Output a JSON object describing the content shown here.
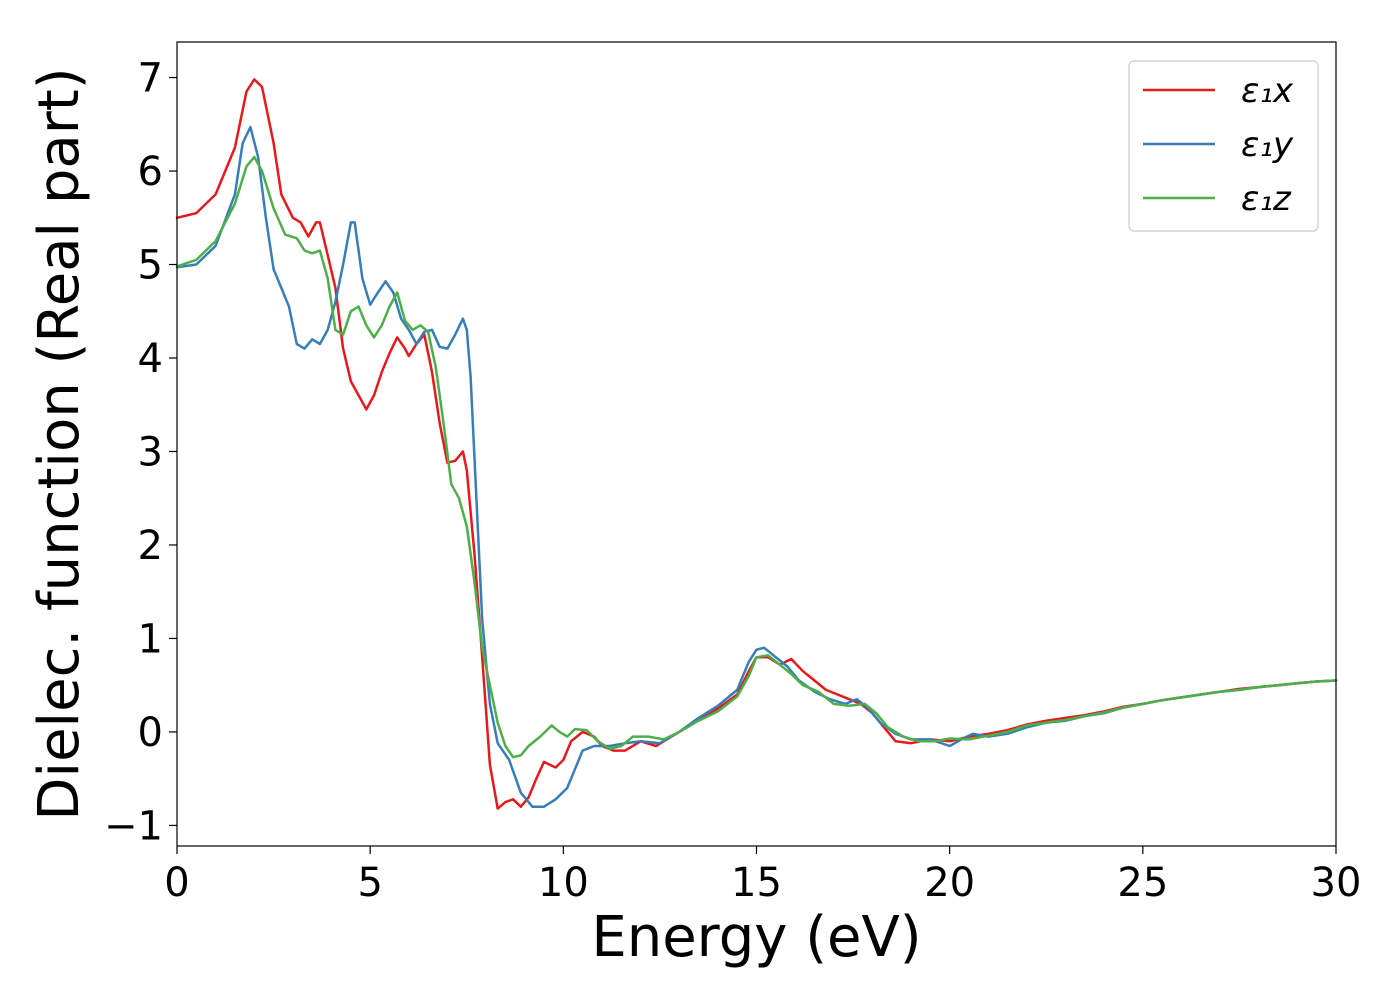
{
  "chart_data": {
    "type": "line",
    "xlabel": "Energy (eV)",
    "ylabel": "Dielec. function (Real part)",
    "xlim": [
      0,
      30
    ],
    "ylim": [
      -1.22,
      7.38
    ],
    "xticks": [
      0,
      5,
      10,
      15,
      20,
      25,
      30
    ],
    "xtick_labels": [
      "0",
      "5",
      "10",
      "15",
      "20",
      "25",
      "30"
    ],
    "yticks": [
      -1,
      0,
      1,
      2,
      3,
      4,
      5,
      6,
      7
    ],
    "ytick_labels": [
      "−1",
      "0",
      "1",
      "2",
      "3",
      "4",
      "5",
      "6",
      "7"
    ],
    "grid": false,
    "legend_position": "top-right",
    "series": [
      {
        "name": "ε₁x",
        "color": "#e41a1c",
        "points": [
          [
            0,
            5.5
          ],
          [
            0.5,
            5.55
          ],
          [
            1.0,
            5.75
          ],
          [
            1.5,
            6.25
          ],
          [
            1.8,
            6.85
          ],
          [
            2.0,
            6.98
          ],
          [
            2.2,
            6.9
          ],
          [
            2.5,
            6.3
          ],
          [
            2.7,
            5.75
          ],
          [
            3.0,
            5.5
          ],
          [
            3.2,
            5.45
          ],
          [
            3.4,
            5.3
          ],
          [
            3.6,
            5.45
          ],
          [
            3.7,
            5.45
          ],
          [
            3.9,
            5.1
          ],
          [
            4.1,
            4.75
          ],
          [
            4.3,
            4.1
          ],
          [
            4.5,
            3.75
          ],
          [
            4.7,
            3.6
          ],
          [
            4.9,
            3.45
          ],
          [
            5.1,
            3.6
          ],
          [
            5.3,
            3.85
          ],
          [
            5.5,
            4.05
          ],
          [
            5.7,
            4.22
          ],
          [
            5.9,
            4.1
          ],
          [
            6.0,
            4.02
          ],
          [
            6.2,
            4.15
          ],
          [
            6.4,
            4.25
          ],
          [
            6.6,
            3.85
          ],
          [
            6.8,
            3.3
          ],
          [
            7.0,
            2.88
          ],
          [
            7.2,
            2.9
          ],
          [
            7.4,
            3.0
          ],
          [
            7.5,
            2.8
          ],
          [
            7.7,
            1.9
          ],
          [
            7.9,
            0.8
          ],
          [
            8.1,
            -0.35
          ],
          [
            8.3,
            -0.82
          ],
          [
            8.5,
            -0.75
          ],
          [
            8.7,
            -0.72
          ],
          [
            8.9,
            -0.8
          ],
          [
            9.1,
            -0.7
          ],
          [
            9.3,
            -0.5
          ],
          [
            9.5,
            -0.32
          ],
          [
            9.8,
            -0.38
          ],
          [
            10.0,
            -0.3
          ],
          [
            10.2,
            -0.1
          ],
          [
            10.5,
            0.0
          ],
          [
            10.8,
            -0.05
          ],
          [
            11.0,
            -0.15
          ],
          [
            11.3,
            -0.2
          ],
          [
            11.6,
            -0.2
          ],
          [
            12.0,
            -0.1
          ],
          [
            12.4,
            -0.15
          ],
          [
            12.8,
            -0.05
          ],
          [
            13.2,
            0.05
          ],
          [
            13.6,
            0.15
          ],
          [
            14.0,
            0.25
          ],
          [
            14.5,
            0.4
          ],
          [
            14.8,
            0.65
          ],
          [
            15.0,
            0.8
          ],
          [
            15.3,
            0.8
          ],
          [
            15.6,
            0.72
          ],
          [
            15.9,
            0.78
          ],
          [
            16.2,
            0.65
          ],
          [
            16.5,
            0.55
          ],
          [
            16.8,
            0.45
          ],
          [
            17.1,
            0.4
          ],
          [
            17.4,
            0.35
          ],
          [
            17.7,
            0.3
          ],
          [
            18.0,
            0.2
          ],
          [
            18.3,
            0.05
          ],
          [
            18.6,
            -0.1
          ],
          [
            19.0,
            -0.12
          ],
          [
            19.5,
            -0.08
          ],
          [
            20.0,
            -0.1
          ],
          [
            20.5,
            -0.05
          ],
          [
            21.0,
            -0.02
          ],
          [
            21.5,
            0.02
          ],
          [
            22.0,
            0.08
          ],
          [
            22.5,
            0.12
          ],
          [
            23.0,
            0.15
          ],
          [
            23.5,
            0.18
          ],
          [
            24.0,
            0.22
          ],
          [
            24.5,
            0.27
          ],
          [
            25.0,
            0.3
          ],
          [
            25.5,
            0.34
          ],
          [
            26.0,
            0.37
          ],
          [
            26.5,
            0.4
          ],
          [
            27.0,
            0.43
          ],
          [
            27.5,
            0.46
          ],
          [
            28.0,
            0.48
          ],
          [
            28.5,
            0.5
          ],
          [
            29.0,
            0.52
          ],
          [
            29.5,
            0.54
          ],
          [
            30.0,
            0.55
          ]
        ]
      },
      {
        "name": "ε₁y",
        "color": "#377eb8",
        "points": [
          [
            0,
            4.97
          ],
          [
            0.5,
            5.0
          ],
          [
            1.0,
            5.2
          ],
          [
            1.5,
            5.75
          ],
          [
            1.7,
            6.3
          ],
          [
            1.9,
            6.47
          ],
          [
            2.1,
            6.15
          ],
          [
            2.3,
            5.5
          ],
          [
            2.5,
            4.95
          ],
          [
            2.7,
            4.75
          ],
          [
            2.9,
            4.55
          ],
          [
            3.1,
            4.15
          ],
          [
            3.3,
            4.1
          ],
          [
            3.5,
            4.2
          ],
          [
            3.7,
            4.15
          ],
          [
            3.9,
            4.3
          ],
          [
            4.1,
            4.6
          ],
          [
            4.3,
            5.0
          ],
          [
            4.5,
            5.45
          ],
          [
            4.6,
            5.45
          ],
          [
            4.8,
            4.85
          ],
          [
            5.0,
            4.57
          ],
          [
            5.2,
            4.7
          ],
          [
            5.4,
            4.82
          ],
          [
            5.6,
            4.7
          ],
          [
            5.8,
            4.42
          ],
          [
            6.0,
            4.3
          ],
          [
            6.2,
            4.15
          ],
          [
            6.4,
            4.28
          ],
          [
            6.6,
            4.3
          ],
          [
            6.8,
            4.12
          ],
          [
            7.0,
            4.1
          ],
          [
            7.2,
            4.25
          ],
          [
            7.4,
            4.42
          ],
          [
            7.5,
            4.3
          ],
          [
            7.6,
            3.8
          ],
          [
            7.75,
            2.5
          ],
          [
            7.9,
            1.2
          ],
          [
            8.1,
            0.3
          ],
          [
            8.3,
            -0.12
          ],
          [
            8.6,
            -0.3
          ],
          [
            8.9,
            -0.65
          ],
          [
            9.2,
            -0.8
          ],
          [
            9.5,
            -0.8
          ],
          [
            9.8,
            -0.72
          ],
          [
            10.1,
            -0.6
          ],
          [
            10.3,
            -0.4
          ],
          [
            10.5,
            -0.2
          ],
          [
            10.8,
            -0.15
          ],
          [
            11.2,
            -0.15
          ],
          [
            11.6,
            -0.12
          ],
          [
            12.0,
            -0.1
          ],
          [
            12.5,
            -0.12
          ],
          [
            13.0,
            0.0
          ],
          [
            13.5,
            0.15
          ],
          [
            14.0,
            0.28
          ],
          [
            14.5,
            0.45
          ],
          [
            14.8,
            0.75
          ],
          [
            15.0,
            0.88
          ],
          [
            15.2,
            0.9
          ],
          [
            15.5,
            0.8
          ],
          [
            15.8,
            0.7
          ],
          [
            16.1,
            0.55
          ],
          [
            16.5,
            0.43
          ],
          [
            16.9,
            0.35
          ],
          [
            17.3,
            0.3
          ],
          [
            17.6,
            0.35
          ],
          [
            17.9,
            0.25
          ],
          [
            18.2,
            0.1
          ],
          [
            18.6,
            -0.02
          ],
          [
            19.0,
            -0.08
          ],
          [
            19.5,
            -0.08
          ],
          [
            20.0,
            -0.15
          ],
          [
            20.3,
            -0.08
          ],
          [
            20.6,
            -0.02
          ],
          [
            21.0,
            -0.05
          ],
          [
            21.5,
            -0.02
          ],
          [
            22.0,
            0.05
          ],
          [
            22.5,
            0.1
          ],
          [
            23.0,
            0.12
          ],
          [
            23.5,
            0.17
          ],
          [
            24.0,
            0.2
          ],
          [
            24.5,
            0.26
          ],
          [
            25.0,
            0.3
          ],
          [
            25.5,
            0.34
          ],
          [
            26.0,
            0.37
          ],
          [
            26.5,
            0.4
          ],
          [
            27.0,
            0.43
          ],
          [
            27.5,
            0.45
          ],
          [
            28.0,
            0.48
          ],
          [
            28.5,
            0.5
          ],
          [
            29.0,
            0.52
          ],
          [
            29.5,
            0.54
          ],
          [
            30.0,
            0.55
          ]
        ]
      },
      {
        "name": "ε₁z",
        "color": "#4daf4a",
        "points": [
          [
            0,
            4.98
          ],
          [
            0.5,
            5.05
          ],
          [
            1.0,
            5.25
          ],
          [
            1.5,
            5.65
          ],
          [
            1.8,
            6.05
          ],
          [
            2.0,
            6.15
          ],
          [
            2.2,
            6.0
          ],
          [
            2.5,
            5.6
          ],
          [
            2.8,
            5.32
          ],
          [
            3.1,
            5.28
          ],
          [
            3.3,
            5.15
          ],
          [
            3.5,
            5.12
          ],
          [
            3.7,
            5.15
          ],
          [
            3.9,
            4.85
          ],
          [
            4.1,
            4.3
          ],
          [
            4.3,
            4.25
          ],
          [
            4.5,
            4.5
          ],
          [
            4.7,
            4.55
          ],
          [
            4.9,
            4.35
          ],
          [
            5.1,
            4.22
          ],
          [
            5.3,
            4.35
          ],
          [
            5.5,
            4.55
          ],
          [
            5.7,
            4.7
          ],
          [
            5.9,
            4.4
          ],
          [
            6.1,
            4.3
          ],
          [
            6.3,
            4.35
          ],
          [
            6.5,
            4.28
          ],
          [
            6.7,
            3.9
          ],
          [
            6.9,
            3.3
          ],
          [
            7.1,
            2.65
          ],
          [
            7.3,
            2.5
          ],
          [
            7.5,
            2.2
          ],
          [
            7.7,
            1.6
          ],
          [
            7.9,
            0.9
          ],
          [
            8.1,
            0.5
          ],
          [
            8.3,
            0.1
          ],
          [
            8.5,
            -0.15
          ],
          [
            8.7,
            -0.27
          ],
          [
            8.9,
            -0.25
          ],
          [
            9.1,
            -0.15
          ],
          [
            9.4,
            -0.05
          ],
          [
            9.7,
            0.07
          ],
          [
            9.9,
            0.0
          ],
          [
            10.1,
            -0.05
          ],
          [
            10.3,
            0.03
          ],
          [
            10.6,
            0.02
          ],
          [
            10.9,
            -0.1
          ],
          [
            11.2,
            -0.18
          ],
          [
            11.5,
            -0.15
          ],
          [
            11.8,
            -0.05
          ],
          [
            12.2,
            -0.05
          ],
          [
            12.6,
            -0.08
          ],
          [
            13.0,
            0.0
          ],
          [
            13.5,
            0.12
          ],
          [
            14.0,
            0.22
          ],
          [
            14.5,
            0.38
          ],
          [
            14.8,
            0.6
          ],
          [
            15.0,
            0.8
          ],
          [
            15.3,
            0.82
          ],
          [
            15.6,
            0.72
          ],
          [
            15.9,
            0.62
          ],
          [
            16.2,
            0.5
          ],
          [
            16.6,
            0.43
          ],
          [
            17.0,
            0.3
          ],
          [
            17.4,
            0.28
          ],
          [
            17.8,
            0.3
          ],
          [
            18.1,
            0.2
          ],
          [
            18.4,
            0.05
          ],
          [
            18.8,
            -0.05
          ],
          [
            19.2,
            -0.1
          ],
          [
            19.6,
            -0.1
          ],
          [
            20.0,
            -0.07
          ],
          [
            20.5,
            -0.08
          ],
          [
            21.0,
            -0.04
          ],
          [
            21.5,
            0.0
          ],
          [
            22.0,
            0.07
          ],
          [
            22.5,
            0.1
          ],
          [
            23.0,
            0.13
          ],
          [
            23.5,
            0.17
          ],
          [
            24.0,
            0.21
          ],
          [
            24.5,
            0.26
          ],
          [
            25.0,
            0.3
          ],
          [
            25.5,
            0.34
          ],
          [
            26.0,
            0.37
          ],
          [
            26.5,
            0.4
          ],
          [
            27.0,
            0.43
          ],
          [
            27.5,
            0.45
          ],
          [
            28.0,
            0.48
          ],
          [
            28.5,
            0.5
          ],
          [
            29.0,
            0.52
          ],
          [
            29.5,
            0.54
          ],
          [
            30.0,
            0.55
          ]
        ]
      }
    ]
  }
}
